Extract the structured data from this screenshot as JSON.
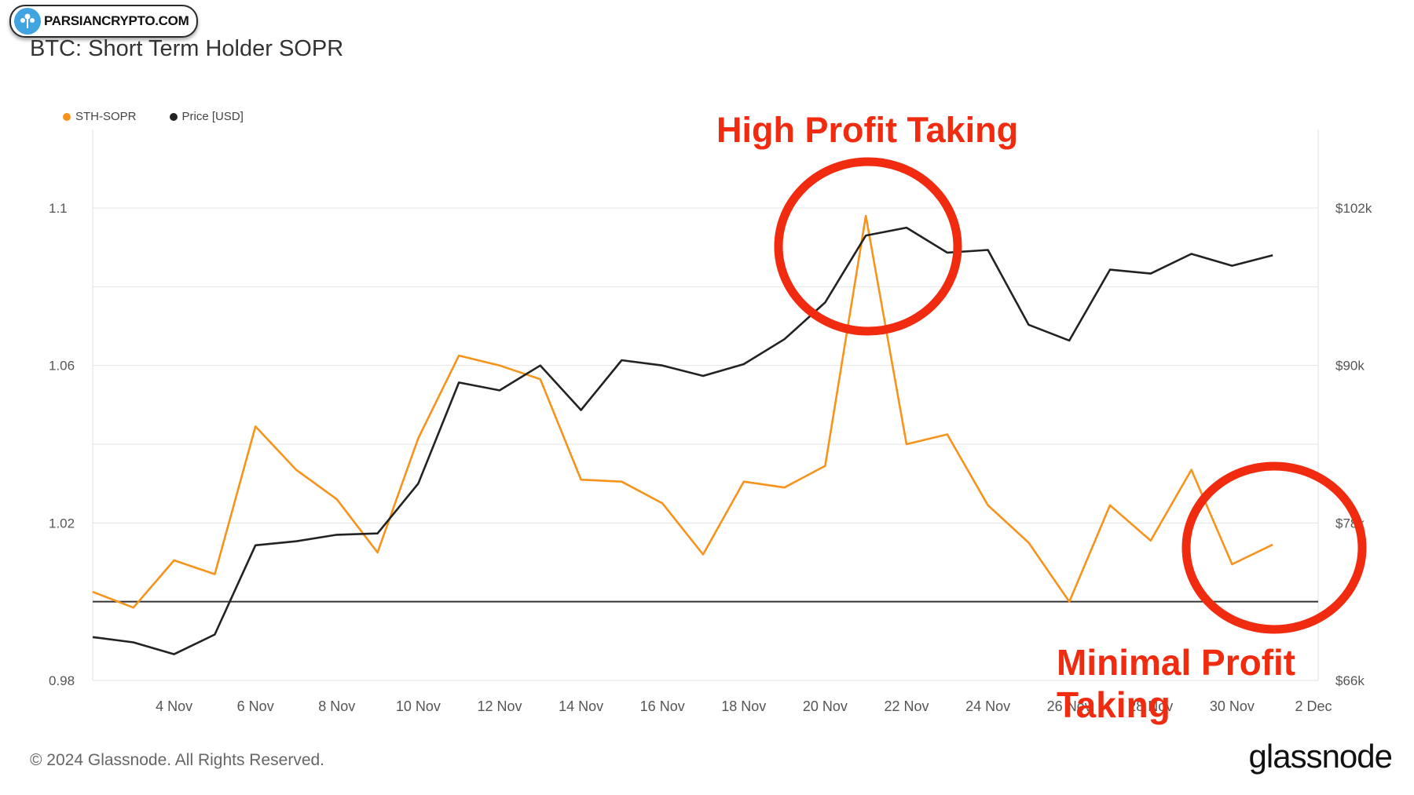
{
  "watermark": {
    "text": "PARSIANCRYPTO.COM",
    "icon": "tree-logo-icon"
  },
  "title": "BTC: Short Term Holder SOPR",
  "legend": [
    {
      "label": "STH-SOPR",
      "color": "#f7931a"
    },
    {
      "label": "Price [USD]",
      "color": "#222222"
    }
  ],
  "annotations": {
    "high": "High Profit Taking",
    "minimal": "Minimal Profit Taking",
    "color": "#f02b0f"
  },
  "footer": {
    "copyright": "© 2024 Glassnode. All Rights Reserved.",
    "brand": "glassnode"
  },
  "chart_data": {
    "type": "line",
    "x_ticks": [
      "4 Nov",
      "6 Nov",
      "8 Nov",
      "10 Nov",
      "12 Nov",
      "14 Nov",
      "16 Nov",
      "18 Nov",
      "20 Nov",
      "22 Nov",
      "24 Nov",
      "26 Nov",
      "28 Nov",
      "30 Nov",
      "2 Dec"
    ],
    "x": [
      "2 Nov",
      "3 Nov",
      "4 Nov",
      "5 Nov",
      "6 Nov",
      "7 Nov",
      "8 Nov",
      "9 Nov",
      "10 Nov",
      "11 Nov",
      "12 Nov",
      "13 Nov",
      "14 Nov",
      "15 Nov",
      "16 Nov",
      "17 Nov",
      "18 Nov",
      "19 Nov",
      "20 Nov",
      "21 Nov",
      "22 Nov",
      "23 Nov",
      "24 Nov",
      "25 Nov",
      "26 Nov",
      "27 Nov",
      "28 Nov",
      "29 Nov",
      "30 Nov",
      "1 Dec"
    ],
    "left_axis": {
      "ticks": [
        "0.98",
        "1.02",
        "1.06",
        "1.1"
      ],
      "range": [
        0.98,
        1.1
      ]
    },
    "right_axis": {
      "ticks": [
        "$66k",
        "$78k",
        "$90k",
        "$102k"
      ],
      "range": [
        66000,
        102000
      ]
    },
    "reference_line": 1.0,
    "series": [
      {
        "name": "STH-SOPR",
        "axis": "left",
        "color": "#f7931a",
        "values": [
          1.0025,
          0.9985,
          1.0105,
          1.007,
          1.0445,
          1.0335,
          1.026,
          1.0125,
          1.0415,
          1.0625,
          1.06,
          1.0565,
          1.031,
          1.0305,
          1.025,
          1.012,
          1.0305,
          1.029,
          1.0345,
          1.098,
          1.04,
          1.0425,
          1.0245,
          1.015,
          1.0,
          1.0245,
          1.0155,
          1.0335,
          1.0095,
          1.0145
        ]
      },
      {
        "name": "Price [USD]",
        "axis": "right",
        "color": "#222222",
        "values": [
          69300,
          68900,
          68000,
          69500,
          76300,
          76600,
          77100,
          77200,
          81000,
          88700,
          88100,
          90000,
          86600,
          90400,
          90000,
          89200,
          90100,
          92000,
          94800,
          99900,
          100500,
          98600,
          98800,
          93100,
          91900,
          97300,
          97000,
          98500,
          97600,
          98400
        ]
      }
    ],
    "grid": true,
    "legend_position": "top-left"
  }
}
